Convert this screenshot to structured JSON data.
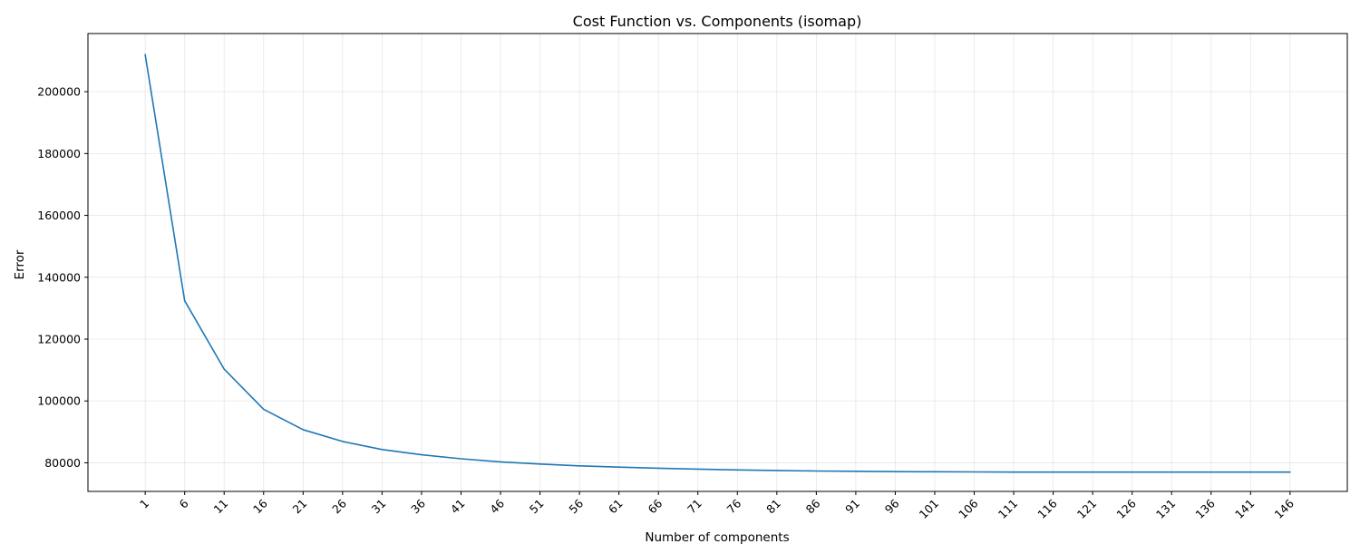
{
  "chart_data": {
    "type": "line",
    "title": "Cost Function vs. Components (isomap)",
    "xlabel": "Number of components",
    "ylabel": "Error",
    "x": [
      1,
      6,
      11,
      16,
      21,
      26,
      31,
      36,
      41,
      46,
      51,
      56,
      61,
      66,
      71,
      76,
      81,
      86,
      91,
      96,
      101,
      106,
      111,
      116,
      121,
      126,
      131,
      136,
      141,
      146
    ],
    "series": [
      {
        "values": [
          212000,
          132400,
          110300,
          97300,
          90700,
          86900,
          84300,
          82600,
          81300,
          80300,
          79600,
          79000,
          78600,
          78250,
          77950,
          77700,
          77500,
          77350,
          77250,
          77150,
          77100,
          77050,
          77000,
          77000,
          77000,
          77000,
          77000,
          77000,
          77000,
          77000
        ],
        "color": "#1f77b4"
      }
    ],
    "xticks": [
      "1",
      "6",
      "11",
      "16",
      "21",
      "26",
      "31",
      "36",
      "41",
      "46",
      "51",
      "56",
      "61",
      "66",
      "71",
      "76",
      "81",
      "86",
      "91",
      "96",
      "101",
      "106",
      "111",
      "116",
      "121",
      "126",
      "131",
      "136",
      "141",
      "146"
    ],
    "yticks": [
      "80000",
      "100000",
      "120000",
      "140000",
      "160000",
      "180000",
      "200000"
    ],
    "ytick_values": [
      80000,
      100000,
      120000,
      140000,
      160000,
      180000,
      200000
    ],
    "xlim": [
      -6.25,
      153.25
    ],
    "ylim": [
      70750,
      218800
    ],
    "grid": true,
    "legend": "none"
  }
}
